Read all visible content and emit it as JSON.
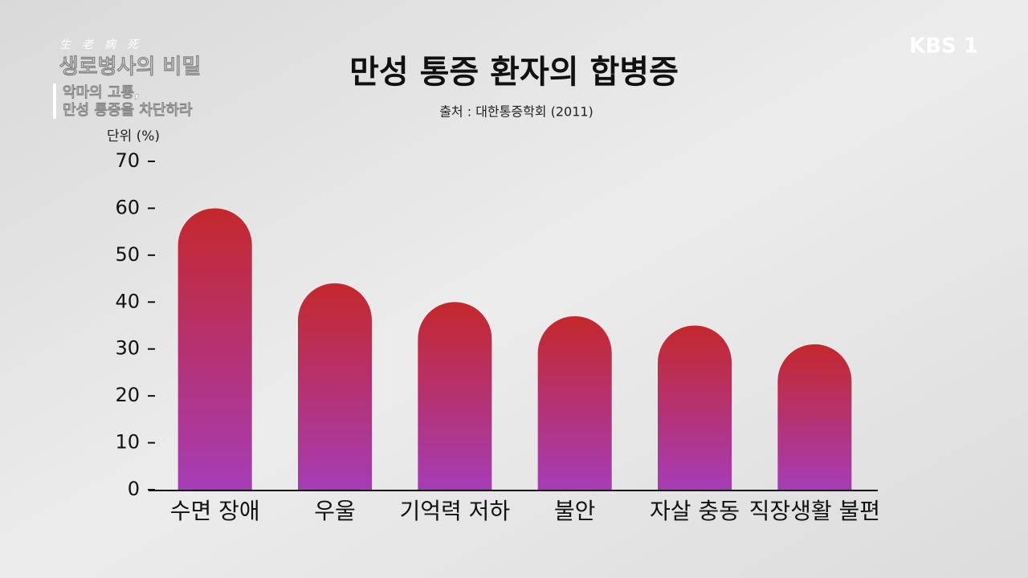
{
  "overlay": {
    "program_hanja": "生老病死",
    "program_title": "생로병사의 비밀",
    "episode_line1": "악마의 고통,",
    "episode_line2": "만성 통증을 차단하라",
    "channel": "KBS 1"
  },
  "chart_data": {
    "type": "bar",
    "title": "만성 통증 환자의 합병증",
    "subtitle": "출처 : 대한통증학회 (2011)",
    "y_label": "단위 (%)",
    "categories": [
      "수면 장애",
      "우울",
      "기억력 저하",
      "불안",
      "자살 충동",
      "직장생활 불편"
    ],
    "values": [
      60,
      44,
      40,
      37,
      35,
      31
    ],
    "gradient_colors": [
      "#c4282c",
      "#a63cb6"
    ],
    "ylim": [
      0,
      70
    ],
    "yticks": [
      0,
      10,
      20,
      30,
      40,
      50,
      60,
      70
    ],
    "grid": false
  }
}
